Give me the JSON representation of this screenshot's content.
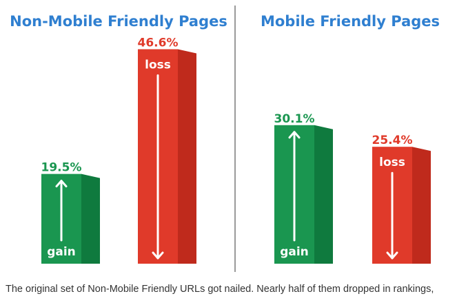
{
  "colors": {
    "gain_front": "#1a9650",
    "gain_side": "#0f7a3e",
    "loss_front": "#e03a2a",
    "loss_side": "#bf2a1c",
    "title": "#2f7fd0",
    "divider": "#999999"
  },
  "chart_data": [
    {
      "type": "bar",
      "title": "Non-Mobile Friendly Pages",
      "categories": [
        "gain",
        "loss"
      ],
      "values": [
        19.5,
        46.6
      ],
      "value_labels": [
        "19.5%",
        "46.6%"
      ],
      "inner_labels": [
        "gain",
        "loss"
      ],
      "colors": [
        "green",
        "red"
      ],
      "ylim": [
        0,
        50
      ],
      "grid": false,
      "legend": "none"
    },
    {
      "type": "bar",
      "title": "Mobile Friendly Pages",
      "categories": [
        "gain",
        "loss"
      ],
      "values": [
        30.1,
        25.4
      ],
      "value_labels": [
        "30.1%",
        "25.4%"
      ],
      "inner_labels": [
        "gain",
        "loss"
      ],
      "colors": [
        "green",
        "red"
      ],
      "ylim": [
        0,
        50
      ],
      "grid": false,
      "legend": "none"
    }
  ],
  "caption": "The original set of Non-Mobile Friendly URLs got nailed. Nearly half of them dropped in rankings,"
}
